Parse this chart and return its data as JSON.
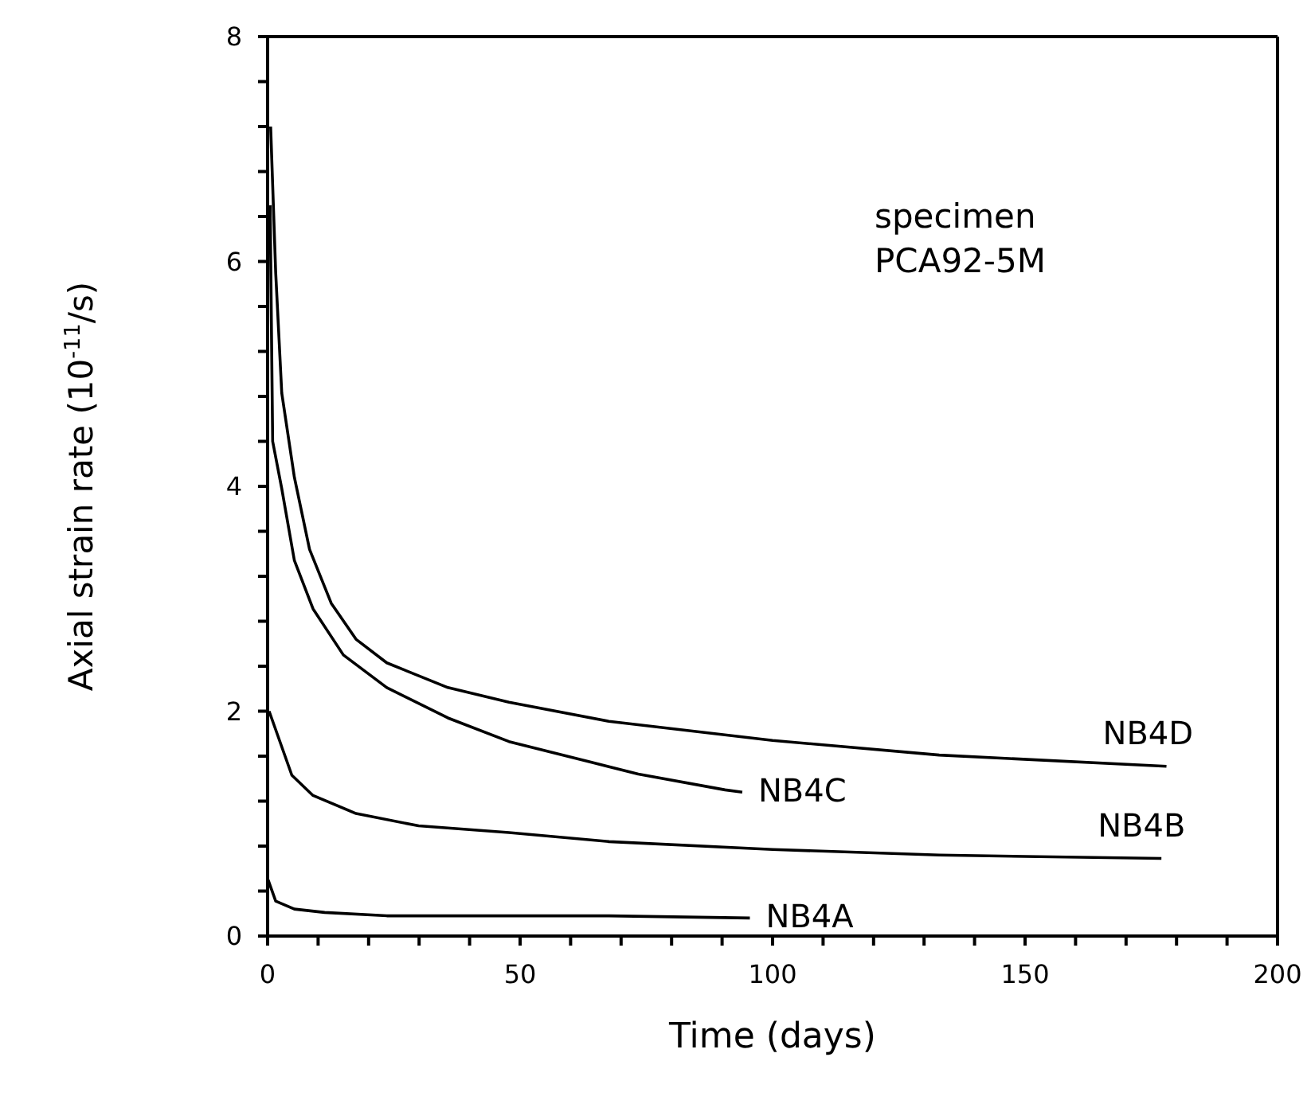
{
  "chart_data": {
    "type": "line",
    "xlabel": "Time (days)",
    "ylabel": "Axial strain rate (10$^{-11}$/s)",
    "annotations": [
      "specimen",
      "PCA92-5M"
    ],
    "xlim": [
      0,
      200
    ],
    "ylim": [
      0,
      8
    ],
    "xticks": [
      0,
      {
        "value": 10,
        "label": null
      },
      {
        "value": 20,
        "label": null
      },
      {
        "value": 30,
        "label": null
      },
      {
        "value": 40,
        "label": null
      },
      50,
      {
        "value": 60,
        "label": null
      },
      {
        "value": 70,
        "label": null
      },
      {
        "value": 80,
        "label": null
      },
      {
        "value": 90,
        "label": null
      },
      100,
      {
        "value": 110,
        "label": null
      },
      {
        "value": 120,
        "label": null
      },
      {
        "value": 130,
        "label": null
      },
      {
        "value": 140,
        "label": null
      },
      150,
      {
        "value": 160,
        "label": null
      },
      {
        "value": 170,
        "label": null
      },
      {
        "value": 180,
        "label": null
      },
      {
        "value": 190,
        "label": null
      },
      200
    ],
    "yticks": [
      0,
      {
        "value": 0.4,
        "label": null
      },
      {
        "value": 0.8,
        "label": null
      },
      {
        "value": 1.2,
        "label": null
      },
      {
        "value": 1.6,
        "label": null
      },
      2,
      {
        "value": 2.4,
        "label": null
      },
      {
        "value": 2.8,
        "label": null
      },
      {
        "value": 3.2,
        "label": null
      },
      {
        "value": 3.6,
        "label": null
      },
      4,
      {
        "value": 4.4,
        "label": null
      },
      {
        "value": 4.8,
        "label": null
      },
      {
        "value": 5.2,
        "label": null
      },
      {
        "value": 5.6,
        "label": null
      },
      6,
      {
        "value": 6.4,
        "label": null
      },
      {
        "value": 6.8,
        "label": null
      },
      {
        "value": 7.2,
        "label": null
      },
      {
        "value": 7.6,
        "label": null
      },
      8
    ],
    "legend": false,
    "marker": "none",
    "line_style": "solid",
    "series": [
      {
        "name": "NB4A",
        "color": "#000000",
        "x": [
          0.1,
          1.6,
          5.3,
          11.3,
          23.6,
          67.6,
          95.5
        ],
        "values": [
          0.5,
          0.31,
          0.24,
          0.21,
          0.18,
          0.18,
          0.16
        ]
      },
      {
        "name": "NB4B",
        "color": "#000000",
        "x": [
          0.3,
          4.8,
          9,
          17.5,
          29.9,
          47.8,
          67.6,
          100,
          133,
          177
        ],
        "values": [
          2.0,
          1.43,
          1.25,
          1.09,
          0.98,
          0.92,
          0.84,
          0.77,
          0.72,
          0.69
        ]
      },
      {
        "name": "NB4C",
        "color": "#000000",
        "x": [
          0.5,
          1,
          2.8,
          5.3,
          9,
          15,
          23.6,
          35.7,
          47.8,
          63.7,
          73.4,
          90.6,
          94
        ],
        "values": [
          6.5,
          4.4,
          3.98,
          3.34,
          2.91,
          2.5,
          2.21,
          1.94,
          1.73,
          1.55,
          1.44,
          1.3,
          1.28
        ]
      },
      {
        "name": "NB4D",
        "color": "#000000",
        "x": [
          0.6,
          1.6,
          2.8,
          5.3,
          8.3,
          12.6,
          17.5,
          23.6,
          35.7,
          47.8,
          67.6,
          100,
          133,
          178
        ],
        "values": [
          7.2,
          5.9,
          4.83,
          4.08,
          3.44,
          2.96,
          2.64,
          2.43,
          2.21,
          2.08,
          1.91,
          1.74,
          1.61,
          1.51
        ]
      }
    ]
  }
}
